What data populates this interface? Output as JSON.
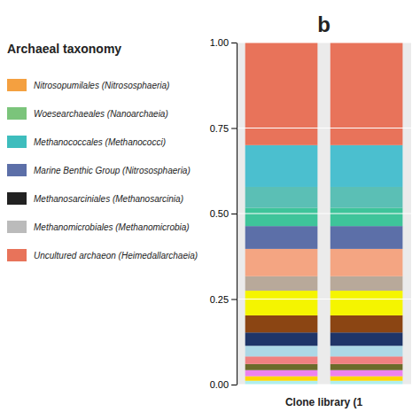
{
  "chart_data": {
    "type": "bar",
    "stacked": true,
    "title": "b",
    "xlabel": "Clone library (1",
    "categories": [
      null,
      null
    ],
    "series": [
      {
        "color": "#AFEEEE",
        "values": [
          0.0111111111,
          0.0111111111
        ]
      },
      {
        "color": "#FFD700",
        "values": [
          0.0133333333,
          0.0133333333
        ]
      },
      {
        "color": "#EE82EE",
        "values": [
          0.0177777778,
          0.0177777778
        ]
      },
      {
        "color": "#6B6B2A",
        "values": [
          0.0177777778,
          0.0177777778
        ]
      },
      {
        "color": "#F08080",
        "values": [
          0.0222222222,
          0.0222222222
        ]
      },
      {
        "color": "#ADD8E6",
        "values": [
          0.0311111111,
          0.0311111111
        ]
      },
      {
        "color": "#1F3568",
        "values": [
          0.0388888889,
          0.0388888889
        ]
      },
      {
        "color": "#8B4513",
        "values": [
          0.05,
          0.05
        ]
      },
      {
        "color": "#F5F500",
        "values": [
          0.0722222222,
          0.0722222222
        ]
      },
      {
        "color": "#B8A99A",
        "values": [
          0.0422222222,
          0.0422222222
        ]
      },
      {
        "color": "#F4A582",
        "values": [
          0.08,
          0.08
        ]
      },
      {
        "color": "#5C6FA8",
        "values": [
          0.0666666667,
          0.0666666667
        ]
      },
      {
        "color": "#3EC49A",
        "values": [
          0.0533333333,
          0.0533333333
        ]
      },
      {
        "color": "#5BBFB5",
        "values": [
          0.0611111111,
          0.0611111111
        ]
      },
      {
        "color": "#4BBFCF",
        "values": [
          0.1222222222,
          0.1222222222
        ]
      },
      {
        "color": "#E8735A",
        "values": [
          0.3,
          0.3
        ]
      }
    ],
    "ylim": [
      0,
      1
    ],
    "yticks": [
      {
        "value": 0,
        "label": "0.00"
      },
      0.25,
      {
        "value": 0.5,
        "label": "0.50"
      },
      0.75,
      {
        "value": 1,
        "label": "1.00"
      }
    ],
    "grid": true,
    "annotations": [
      {
        "text": "Archaeal taxonomy"
      },
      {
        "text": "Nitrosopumilales (Nitrososphaeria)",
        "color": "#F4A040"
      },
      {
        "text": "Woesearchaeales (Nanoarchaeia)",
        "color": "#7BC47B"
      },
      {
        "text": "Methanococcales (Methanococci)",
        "color": "#3EBDBD"
      },
      {
        "text": "Marine Benthic Group (Nitrososphaeria)",
        "color": "#5C6FA8"
      },
      {
        "text": "Methanosarciniales (Methanosarcinia)",
        "color": "#222222"
      },
      {
        "text": "Methanomicrobiales (Methanomicrobia)",
        "color": "#BBBBBB"
      },
      {
        "text": "Uncultured archaeon (Heimedallarchaeia)",
        "color": "#E8735A"
      }
    ]
  }
}
